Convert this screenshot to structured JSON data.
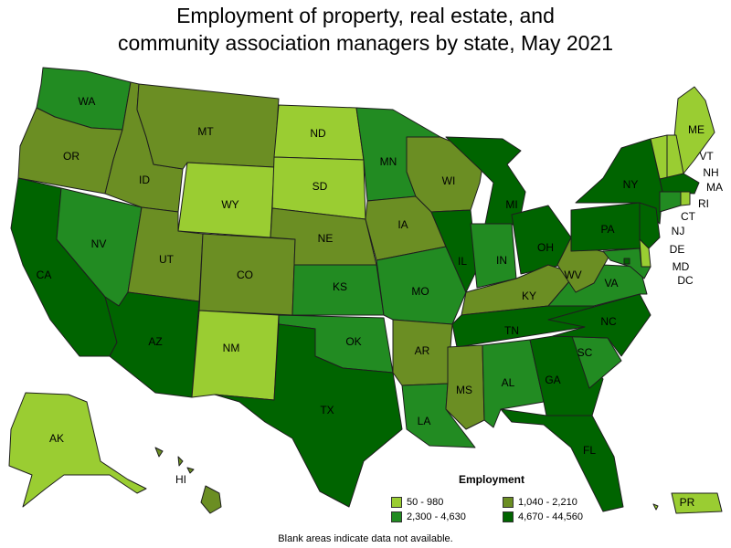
{
  "title_line1": "Employment of property, real estate, and",
  "title_line2": "community association managers by state, May 2021",
  "legend": {
    "title": "Employment",
    "items": [
      {
        "label": "50 - 980",
        "color": "#9acd32"
      },
      {
        "label": "1,040 - 2,210",
        "color": "#6b8e23"
      },
      {
        "label": "2,300 - 4,630",
        "color": "#228b22"
      },
      {
        "label": "4,670 - 44,560",
        "color": "#006400"
      }
    ]
  },
  "footnote": "Blank areas indicate data not available.",
  "colors": {
    "c1": "#9acd32",
    "c2": "#6b8e23",
    "c3": "#228b22",
    "c4": "#006400"
  },
  "states": [
    {
      "abbr": "WA",
      "cls": "c3"
    },
    {
      "abbr": "OR",
      "cls": "c2"
    },
    {
      "abbr": "CA",
      "cls": "c4"
    },
    {
      "abbr": "ID",
      "cls": "c2"
    },
    {
      "abbr": "NV",
      "cls": "c3"
    },
    {
      "abbr": "MT",
      "cls": "c2"
    },
    {
      "abbr": "WY",
      "cls": "c1"
    },
    {
      "abbr": "UT",
      "cls": "c2"
    },
    {
      "abbr": "AZ",
      "cls": "c4"
    },
    {
      "abbr": "CO",
      "cls": "c2"
    },
    {
      "abbr": "NM",
      "cls": "c1"
    },
    {
      "abbr": "ND",
      "cls": "c1"
    },
    {
      "abbr": "SD",
      "cls": "c1"
    },
    {
      "abbr": "NE",
      "cls": "c2"
    },
    {
      "abbr": "KS",
      "cls": "c3"
    },
    {
      "abbr": "OK",
      "cls": "c3"
    },
    {
      "abbr": "TX",
      "cls": "c4"
    },
    {
      "abbr": "MN",
      "cls": "c3"
    },
    {
      "abbr": "IA",
      "cls": "c2"
    },
    {
      "abbr": "MO",
      "cls": "c3"
    },
    {
      "abbr": "AR",
      "cls": "c2"
    },
    {
      "abbr": "LA",
      "cls": "c3"
    },
    {
      "abbr": "WI",
      "cls": "c2"
    },
    {
      "abbr": "IL",
      "cls": "c4"
    },
    {
      "abbr": "MI",
      "cls": "c4"
    },
    {
      "abbr": "IN",
      "cls": "c3"
    },
    {
      "abbr": "OH",
      "cls": "c4"
    },
    {
      "abbr": "KY",
      "cls": "c2"
    },
    {
      "abbr": "TN",
      "cls": "c4"
    },
    {
      "abbr": "MS",
      "cls": "c2"
    },
    {
      "abbr": "AL",
      "cls": "c3"
    },
    {
      "abbr": "GA",
      "cls": "c4"
    },
    {
      "abbr": "FL",
      "cls": "c4"
    },
    {
      "abbr": "SC",
      "cls": "c3"
    },
    {
      "abbr": "NC",
      "cls": "c4"
    },
    {
      "abbr": "VA",
      "cls": "c3"
    },
    {
      "abbr": "WV",
      "cls": "c2"
    },
    {
      "abbr": "PA",
      "cls": "c4"
    },
    {
      "abbr": "NY",
      "cls": "c4"
    },
    {
      "abbr": "ME",
      "cls": "c1"
    },
    {
      "abbr": "VT",
      "cls": "c1"
    },
    {
      "abbr": "NH",
      "cls": "c1"
    },
    {
      "abbr": "MA",
      "cls": "c4"
    },
    {
      "abbr": "RI",
      "cls": "c1"
    },
    {
      "abbr": "CT",
      "cls": "c3"
    },
    {
      "abbr": "NJ",
      "cls": "c4"
    },
    {
      "abbr": "DE",
      "cls": "c1"
    },
    {
      "abbr": "MD",
      "cls": "c3"
    },
    {
      "abbr": "DC",
      "cls": "c4"
    },
    {
      "abbr": "AK",
      "cls": "c1"
    },
    {
      "abbr": "HI",
      "cls": "c2"
    },
    {
      "abbr": "PR",
      "cls": "c1"
    }
  ]
}
